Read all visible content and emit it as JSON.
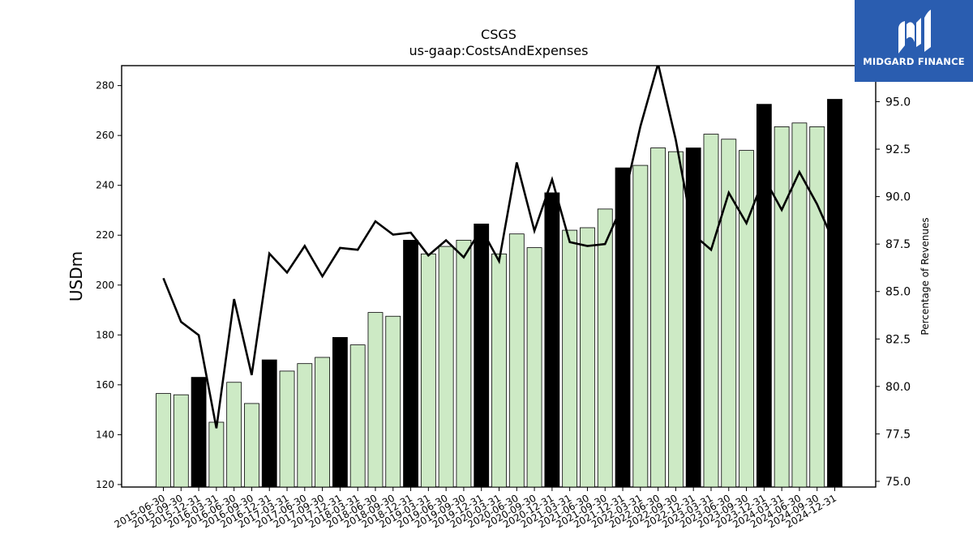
{
  "chart_data": {
    "type": "bar",
    "title": "CSGS",
    "subtitle": "us-gaap:CostsAndExpenses",
    "ylabel": "USDm",
    "y2label": "Percentage of Revenues",
    "ylim": [
      119,
      288
    ],
    "y2lim": [
      74.7,
      96.9
    ],
    "yticks": [
      120,
      140,
      160,
      180,
      200,
      220,
      240,
      260,
      280
    ],
    "y2ticks": [
      "75.0",
      "77.5",
      "80.0",
      "82.5",
      "85.0",
      "87.5",
      "90.0",
      "92.5",
      "95.0"
    ],
    "categories": [
      "2015-06-30",
      "2015-09-30",
      "2015-12-31",
      "2016-03-31",
      "2016-06-30",
      "2016-09-30",
      "2016-12-31",
      "2017-03-31",
      "2017-06-30",
      "2017-09-30",
      "2017-12-31",
      "2018-03-31",
      "2018-06-30",
      "2018-09-30",
      "2018-12-31",
      "2019-03-31",
      "2019-06-30",
      "2019-09-30",
      "2019-12-31",
      "2020-03-31",
      "2020-06-30",
      "2020-09-30",
      "2020-12-31",
      "2021-03-31",
      "2021-06-30",
      "2021-09-30",
      "2021-12-31",
      "2022-03-31",
      "2022-06-30",
      "2022-09-30",
      "2022-12-31",
      "2023-03-31",
      "2023-06-30",
      "2023-09-30",
      "2023-12-31",
      "2024-03-31",
      "2024-06-30",
      "2024-09-30",
      "2024-12-31"
    ],
    "series": [
      {
        "kind": "bar",
        "values": [
          156.5,
          156,
          163,
          145,
          161,
          152.5,
          170,
          165.5,
          168.5,
          171,
          179,
          176,
          189,
          187.5,
          218,
          212.5,
          215.5,
          218,
          224.5,
          212.5,
          220.5,
          215,
          237,
          222,
          223,
          230.5,
          247,
          248,
          255,
          253.5,
          255,
          260.5,
          258.5,
          254,
          272.5,
          263.5,
          265,
          263.5,
          274.5
        ],
        "highlight_quarters": [
          "12-31"
        ],
        "colors": {
          "normal": "#cdeac5",
          "highlight": "#000000",
          "edge": "#000000"
        }
      },
      {
        "kind": "line",
        "axis": "right",
        "values": [
          85.7,
          83.4,
          82.7,
          77.8,
          84.6,
          80.6,
          87.0,
          86.0,
          87.4,
          85.8,
          87.3,
          87.2,
          88.7,
          88.0,
          88.1,
          86.9,
          87.7,
          86.8,
          88.3,
          86.6,
          91.8,
          88.2,
          90.9,
          87.6,
          87.4,
          87.5,
          89.6,
          93.7,
          97.0,
          93.0,
          88.0,
          87.2,
          90.2,
          88.6,
          91.0,
          89.3,
          91.3,
          89.6,
          87.5
        ],
        "color": "#000000"
      }
    ],
    "grid": false,
    "legend": "none"
  },
  "logo": {
    "name": "MIDGARD FINANCE",
    "bg_color": "#2a5db0",
    "icon": "midgard-logo-icon"
  }
}
